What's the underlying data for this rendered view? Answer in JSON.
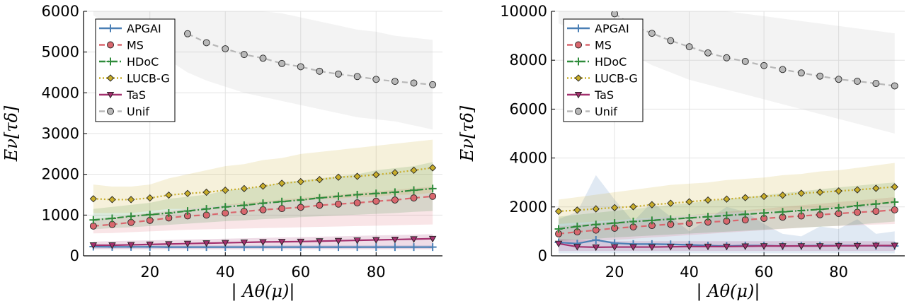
{
  "chart_data": [
    {
      "type": "line",
      "xlabel": "| Aθ(μ)|",
      "ylabel": "Eν[τδ]",
      "x": [
        5,
        10,
        15,
        20,
        25,
        30,
        35,
        40,
        45,
        50,
        55,
        60,
        65,
        70,
        75,
        80,
        85,
        90,
        95
      ],
      "xlim": [
        2.4,
        97.6
      ],
      "ylim": [
        0,
        6000
      ],
      "xticks": [
        20,
        40,
        60,
        80
      ],
      "yticks": [
        0,
        1000,
        2000,
        3000,
        4000,
        5000,
        6000
      ],
      "grid": true,
      "legend": "upper left",
      "series": [
        {
          "name": "APGAI",
          "color": "#4a7fb5",
          "dash": "solid",
          "marker": "plus",
          "values": [
            225,
            220,
            220,
            220,
            215,
            215,
            215,
            215,
            215,
            215,
            215,
            215,
            215,
            215,
            215,
            215,
            215,
            215,
            215
          ],
          "band_lower": [
            180,
            180,
            180,
            180,
            180,
            180,
            180,
            180,
            180,
            180,
            180,
            180,
            180,
            180,
            180,
            180,
            180,
            180,
            180
          ],
          "band_upper": [
            270,
            265,
            265,
            265,
            260,
            260,
            260,
            260,
            260,
            260,
            260,
            260,
            260,
            260,
            260,
            260,
            260,
            260,
            260
          ]
        },
        {
          "name": "MS",
          "color": "#d9676e",
          "dash": "dashed",
          "marker": "circle",
          "values": [
            730,
            770,
            820,
            870,
            930,
            980,
            1000,
            1050,
            1090,
            1130,
            1160,
            1190,
            1240,
            1270,
            1300,
            1340,
            1370,
            1420,
            1460
          ],
          "band_lower": [
            550,
            560,
            580,
            600,
            620,
            640,
            650,
            660,
            670,
            680,
            690,
            700,
            710,
            720,
            730,
            740,
            750,
            760,
            770
          ],
          "band_upper": [
            900,
            950,
            1000,
            1050,
            1100,
            1150,
            1200,
            1250,
            1300,
            1330,
            1380,
            1420,
            1460,
            1500,
            1540,
            1580,
            1620,
            1660,
            1700
          ]
        },
        {
          "name": "HDoC",
          "color": "#2e8b3a",
          "dash": "dashdot",
          "marker": "plus",
          "values": [
            880,
            920,
            970,
            1010,
            1050,
            1100,
            1150,
            1200,
            1240,
            1290,
            1330,
            1370,
            1420,
            1460,
            1500,
            1530,
            1560,
            1610,
            1650
          ],
          "band_lower": [
            650,
            680,
            700,
            730,
            760,
            790,
            820,
            850,
            870,
            900,
            920,
            950,
            970,
            990,
            1010,
            1030,
            1050,
            1080,
            1100
          ],
          "band_upper": [
            1150,
            1200,
            1250,
            1300,
            1400,
            1450,
            1500,
            1600,
            1650,
            1700,
            1800,
            1850,
            1900,
            1950,
            2000,
            2100,
            2150,
            2200,
            2300
          ]
        },
        {
          "name": "LUCB-G",
          "color": "#c8ad2a",
          "dash": "dotted",
          "marker": "diamond",
          "values": [
            1400,
            1380,
            1380,
            1420,
            1490,
            1530,
            1560,
            1610,
            1650,
            1710,
            1780,
            1820,
            1870,
            1930,
            1950,
            1990,
            2040,
            2100,
            2160
          ],
          "band_lower": [
            1050,
            1050,
            1050,
            1100,
            1150,
            1150,
            1200,
            1250,
            1250,
            1300,
            1350,
            1350,
            1400,
            1400,
            1450,
            1450,
            1500,
            1500,
            1550
          ],
          "band_upper": [
            1750,
            1700,
            1700,
            1750,
            1900,
            2000,
            2100,
            2200,
            2250,
            2350,
            2400,
            2500,
            2550,
            2600,
            2650,
            2700,
            2750,
            2800,
            2850
          ]
        },
        {
          "name": "TaS",
          "color": "#a3306e",
          "dash": "solid",
          "marker": "triangle",
          "values": [
            260,
            260,
            270,
            280,
            290,
            300,
            310,
            320,
            330,
            340,
            345,
            350,
            360,
            370,
            380,
            390,
            400,
            410,
            420
          ],
          "band_lower": [
            160,
            160,
            160,
            160,
            160,
            160,
            160,
            160,
            160,
            160,
            160,
            160,
            160,
            160,
            160,
            160,
            160,
            160,
            160
          ],
          "band_upper": [
            350,
            360,
            370,
            380,
            390,
            400,
            410,
            420,
            430,
            440,
            450,
            460,
            470,
            480,
            490,
            500,
            510,
            520,
            530
          ]
        },
        {
          "name": "Unif",
          "color": "#b8b8b8",
          "dash": "dashed",
          "marker": "circle",
          "values": [
            null,
            null,
            null,
            null,
            null,
            5450,
            5230,
            5080,
            4940,
            4850,
            4720,
            4640,
            4530,
            4460,
            4400,
            4330,
            4280,
            4240,
            4200
          ],
          "band_lower": [
            5900,
            5600,
            5300,
            5000,
            4800,
            4500,
            4300,
            4150,
            4000,
            3900,
            3800,
            3700,
            3600,
            3500,
            3400,
            3350,
            3300,
            3200,
            3100
          ],
          "band_upper": [
            7500,
            7300,
            7100,
            6900,
            6700,
            6500,
            6300,
            6200,
            6100,
            6000,
            5950,
            5850,
            5750,
            5650,
            5550,
            5500,
            5400,
            5350,
            5300
          ]
        }
      ]
    },
    {
      "type": "line",
      "xlabel": "| Aθ(μ)|",
      "ylabel": "Eν[τδ]",
      "x": [
        5,
        10,
        15,
        20,
        25,
        30,
        35,
        40,
        45,
        50,
        55,
        60,
        65,
        70,
        75,
        80,
        85,
        90,
        95
      ],
      "xlim": [
        3.1,
        97.7
      ],
      "ylim": [
        0,
        10000
      ],
      "xticks": [
        20,
        40,
        60,
        80
      ],
      "yticks": [
        0,
        2000,
        4000,
        6000,
        8000,
        10000
      ],
      "grid": true,
      "legend": "upper left",
      "series": [
        {
          "name": "APGAI",
          "color": "#4a7fb5",
          "dash": "solid",
          "marker": "plus",
          "values": [
            550,
            500,
            650,
            520,
            480,
            480,
            470,
            450,
            420,
            400,
            420,
            420,
            400,
            410,
            420,
            420,
            420,
            410,
            400
          ],
          "band_lower": [
            100,
            100,
            100,
            100,
            100,
            100,
            100,
            100,
            100,
            100,
            100,
            100,
            100,
            100,
            100,
            100,
            100,
            100,
            100
          ],
          "band_upper": [
            1500,
            1800,
            3300,
            2300,
            1400,
            2200,
            1600,
            1000,
            1500,
            2000,
            1800,
            1300,
            900,
            800,
            1200,
            1100,
            1500,
            900,
            1000
          ]
        },
        {
          "name": "MS",
          "color": "#d9676e",
          "dash": "dashed",
          "marker": "circle",
          "values": [
            900,
            980,
            1050,
            1130,
            1180,
            1240,
            1290,
            1330,
            1380,
            1420,
            1470,
            1530,
            1580,
            1630,
            1680,
            1730,
            1780,
            1820,
            1880
          ],
          "band_lower": [
            500,
            550,
            600,
            650,
            700,
            750,
            800,
            850,
            900,
            950,
            1000,
            1050,
            1100,
            1150,
            1200,
            1220,
            1250,
            1280,
            1300
          ],
          "band_upper": [
            1200,
            1270,
            1340,
            1400,
            1470,
            1530,
            1600,
            1660,
            1730,
            1800,
            1870,
            1930,
            2000,
            2070,
            2130,
            2200,
            2270,
            2330,
            2400
          ]
        },
        {
          "name": "HDoC",
          "color": "#2e8b3a",
          "dash": "dashdot",
          "marker": "plus",
          "values": [
            1100,
            1200,
            1280,
            1340,
            1400,
            1450,
            1500,
            1550,
            1600,
            1650,
            1700,
            1750,
            1800,
            1850,
            1900,
            1960,
            2050,
            2120,
            2200
          ],
          "band_lower": [
            600,
            650,
            700,
            750,
            790,
            830,
            870,
            910,
            950,
            990,
            1030,
            1070,
            1110,
            1150,
            1190,
            1230,
            1280,
            1340,
            1400
          ],
          "band_upper": [
            1600,
            1680,
            1760,
            1840,
            1920,
            2000,
            2080,
            2160,
            2240,
            2320,
            2400,
            2480,
            2560,
            2640,
            2720,
            2800,
            2870,
            2940,
            3000
          ]
        },
        {
          "name": "LUCB-G",
          "color": "#c8ad2a",
          "dash": "dotted",
          "marker": "diamond",
          "values": [
            1820,
            1870,
            1920,
            1970,
            2010,
            2090,
            2150,
            2210,
            2280,
            2320,
            2380,
            2430,
            2480,
            2560,
            2600,
            2650,
            2700,
            2760,
            2820
          ],
          "band_lower": [
            1300,
            1350,
            1400,
            1450,
            1500,
            1550,
            1600,
            1650,
            1700,
            1750,
            1800,
            1850,
            1850,
            1900,
            1950,
            2000,
            2050,
            2100,
            2150
          ],
          "band_upper": [
            2300,
            2400,
            2500,
            2600,
            2700,
            2800,
            2900,
            2950,
            3000,
            3100,
            3150,
            3200,
            3300,
            3350,
            3450,
            3500,
            3600,
            3700,
            3800
          ]
        },
        {
          "name": "TaS",
          "color": "#a3306e",
          "dash": "solid",
          "marker": "triangle",
          "values": [
            500,
            370,
            350,
            360,
            360,
            360,
            370,
            380,
            380,
            380,
            390,
            400,
            400,
            400,
            400,
            410,
            410,
            420,
            420
          ],
          "band_lower": [
            200,
            200,
            200,
            200,
            200,
            200,
            200,
            200,
            200,
            200,
            200,
            200,
            200,
            200,
            200,
            200,
            200,
            200,
            200
          ],
          "band_upper": [
            700,
            650,
            620,
            600,
            600,
            600,
            600,
            600,
            600,
            600,
            600,
            600,
            600,
            600,
            600,
            600,
            600,
            600,
            600
          ]
        },
        {
          "name": "Unif",
          "color": "#b8b8b8",
          "dash": "dashed",
          "marker": "circle",
          "values": [
            null,
            null,
            null,
            9900,
            9400,
            9100,
            8800,
            8550,
            8300,
            8100,
            7950,
            7780,
            7620,
            7480,
            7350,
            7220,
            7140,
            7050,
            6950
          ],
          "band_lower": [
            9500,
            9200,
            8900,
            8500,
            8200,
            7800,
            7500,
            7200,
            7000,
            6800,
            6600,
            6400,
            6200,
            6000,
            5800,
            5600,
            5400,
            5200,
            5000
          ],
          "band_upper": [
            12000,
            11800,
            11500,
            11200,
            11000,
            10800,
            10600,
            10400,
            10200,
            10000,
            9900,
            9800,
            9700,
            9600,
            9500,
            9400,
            9300,
            9200,
            9100
          ]
        }
      ]
    }
  ]
}
